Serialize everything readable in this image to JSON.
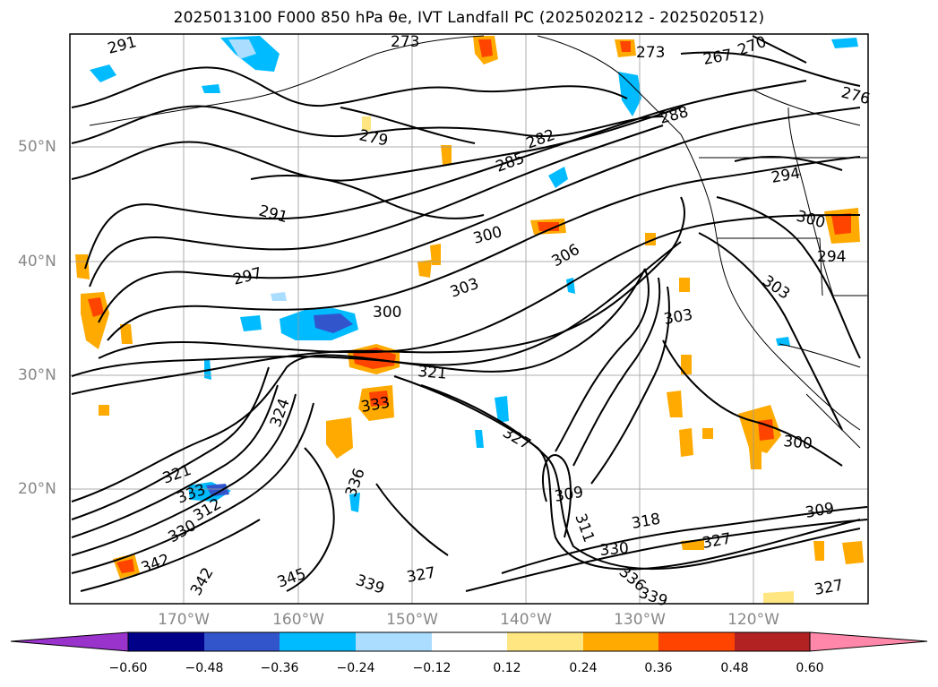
{
  "title": "2025013100 F000 850 hPa θe, IVT Landfall PC (2025020212 - 2025020512)",
  "map": {
    "lat_labels": [
      "50°N",
      "40°N",
      "30°N",
      "20°N"
    ],
    "lon_labels": [
      "170°W",
      "160°W",
      "150°W",
      "140°W",
      "130°W",
      "120°W"
    ],
    "contour_labels": [
      "291",
      "273",
      "273",
      "267",
      "270",
      "276",
      "288",
      "279",
      "282",
      "285",
      "294",
      "300",
      "291",
      "300",
      "306",
      "294",
      "297",
      "303",
      "303",
      "300",
      "303",
      "321",
      "324",
      "333",
      "327",
      "321",
      "333",
      "342",
      "312",
      "330",
      "336",
      "309",
      "318",
      "311",
      "309",
      "327",
      "330",
      "336",
      "339",
      "327",
      "342",
      "345",
      "339",
      "327",
      "300"
    ]
  },
  "colorbar": {
    "ticks": [
      "−0.60",
      "−0.48",
      "−0.36",
      "−0.24",
      "−0.12",
      "0.12",
      "0.24",
      "0.36",
      "0.48",
      "0.60"
    ],
    "colors": [
      "#9933cc",
      "#000088",
      "#3355cc",
      "#00bbff",
      "#aaddff",
      "#ffffff",
      "#ffe680",
      "#ffaa00",
      "#ff4400",
      "#b22222",
      "#ff88aa"
    ]
  }
}
